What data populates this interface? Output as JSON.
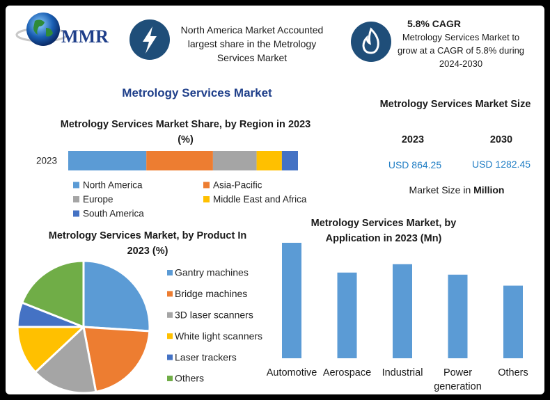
{
  "logo": "MMR",
  "highlights": [
    {
      "text": "North America Market Accounted largest share in the Metrology Services Market"
    },
    {
      "title": "5.8% CAGR",
      "text": "Metrology Services Market to grow at a CAGR of 5.8% during 2024-2030"
    }
  ],
  "title": "Metrology Services Market",
  "market_size": {
    "title": "Metrology Services Market Size",
    "years": [
      "2023",
      "2030"
    ],
    "values": [
      "USD 864.25",
      "USD 1282.45"
    ],
    "note": "Market Size in",
    "unit": "Million"
  },
  "chart_data": [
    {
      "type": "stacked-bar",
      "title": "Metrology Services Market Share, by Region in 2023 (%)",
      "categories": [
        "2023"
      ],
      "series": [
        {
          "name": "North America",
          "color": "#5b9bd5",
          "values": [
            34
          ]
        },
        {
          "name": "Asia-Pacific",
          "color": "#ed7d31",
          "values": [
            29
          ]
        },
        {
          "name": "Europe",
          "color": "#a5a5a5",
          "values": [
            19
          ]
        },
        {
          "name": "Middle East and Africa",
          "color": "#ffc000",
          "values": [
            11
          ]
        },
        {
          "name": "South America",
          "color": "#4472c4",
          "values": [
            7
          ]
        }
      ]
    },
    {
      "type": "pie",
      "title": "Metrology Services Market, by Product In 2023 (%)",
      "categories": [
        "Gantry machines",
        "Bridge machines",
        "3D laser scanners",
        "White light scanners",
        "Laser trackers",
        "Others"
      ],
      "values": [
        26,
        21,
        16,
        12,
        6,
        19
      ],
      "colors": [
        "#5b9bd5",
        "#ed7d31",
        "#a5a5a5",
        "#ffc000",
        "#4472c4",
        "#70ad47"
      ]
    },
    {
      "type": "bar",
      "title": "Metrology Services Market, by Application in 2023 (Mn)",
      "categories": [
        "Automotive",
        "Aerospace",
        "Industrial",
        "Power generation",
        "Others"
      ],
      "values": [
        221,
        164,
        180,
        160,
        139
      ],
      "color": "#5b9bd5"
    }
  ]
}
